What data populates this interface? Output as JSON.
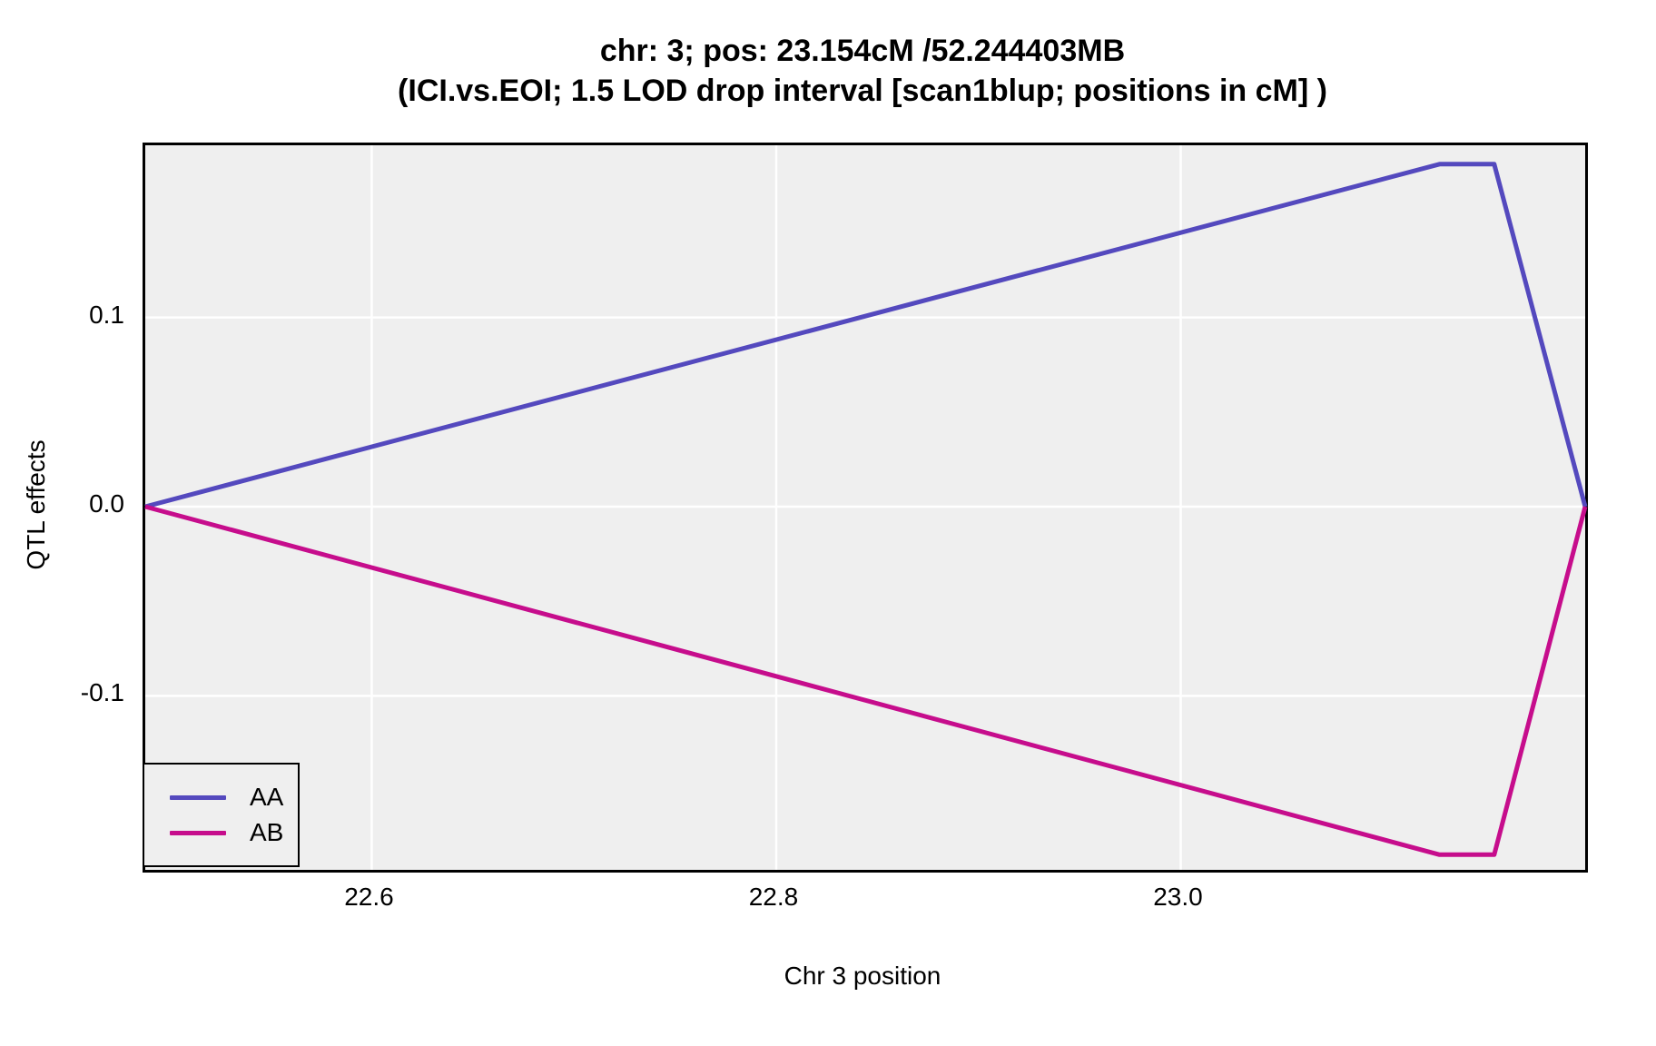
{
  "title": "chr: 3; pos: 23.154cM /52.244403MB",
  "subtitle": "(ICI.vs.EOI; 1.5 LOD drop interval [scan1blup; positions in cM] )",
  "colors": {
    "panel_bg": "#EFEFEF",
    "grid": "#FFFFFF",
    "border": "#000000",
    "text": "#000000",
    "series_AA": "#5449BE",
    "series_AB": "#C60D8C"
  },
  "chart_data": {
    "type": "line",
    "title": "chr: 3; pos: 23.154cM /52.244403MB",
    "subtitle": "(ICI.vs.EOI; 1.5 LOD drop interval [scan1blup; positions in cM] )",
    "xlabel": "Chr 3 position",
    "ylabel": "QTL effects",
    "x": [
      22.488,
      23.128,
      23.155,
      23.2
    ],
    "series": [
      {
        "name": "AA",
        "color": "#5449BE",
        "values": [
          0.0,
          0.181,
          0.181,
          0.0
        ]
      },
      {
        "name": "AB",
        "color": "#C60D8C",
        "values": [
          0.0,
          -0.184,
          -0.184,
          0.0
        ]
      }
    ],
    "xlim": [
      22.488,
      23.2
    ],
    "ylim": [
      -0.192,
      0.191
    ],
    "xticks": {
      "values": [
        22.6,
        22.8,
        23.0
      ],
      "labels": [
        "22.6",
        "22.8",
        "23.0"
      ]
    },
    "yticks": {
      "values": [
        0.1,
        0.0,
        -0.1
      ],
      "labels": [
        "0.1",
        "0.0",
        "-0.1"
      ]
    },
    "grid": true,
    "legend_position": "bottom-left",
    "legend_entries": [
      "AA",
      "AB"
    ]
  }
}
